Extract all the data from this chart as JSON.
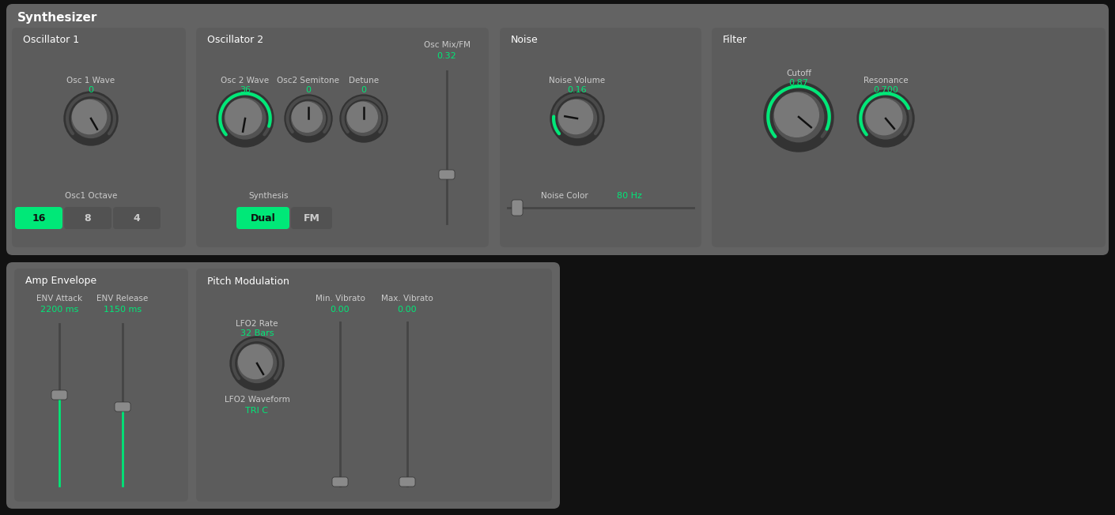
{
  "title": "Synthesizer",
  "green": "#00e878",
  "panel_bg": "#636363",
  "section_bg": "#5c5c5c",
  "knob_outer": "#333333",
  "knob_inner": "#787878",
  "text_light": "#cccccc",
  "text_green": "#00e878",
  "btn_green": "#00e878",
  "btn_dark": "#525252",
  "slider_track": "#454545",
  "slider_handle": "#8a8a8a",
  "black_bg": "#111111",
  "osc1_wave_label": "Osc 1 Wave",
  "osc1_wave_val": "0",
  "osc1_octave_label": "Osc1 Octave",
  "osc1_octave_btns": [
    "16",
    "8",
    "4"
  ],
  "osc2_wave_label": "Osc 2 Wave",
  "osc2_wave_val": "36",
  "osc2_semitone_label": "Osc2 Semitone",
  "osc2_semitone_val": "0",
  "osc2_detune_label": "Detune",
  "osc2_detune_val": "0",
  "osc2_mix_label": "Osc Mix/FM",
  "osc2_mix_val": "0.32",
  "synthesis_label": "Synthesis",
  "synthesis_btns": [
    "Dual",
    "FM"
  ],
  "noise_vol_label": "Noise Volume",
  "noise_vol_val": "0.16",
  "noise_color_label": "Noise Color",
  "noise_color_val": "80 Hz",
  "filter_cutoff_label": "Cutoff",
  "filter_cutoff_val": "0.87",
  "filter_res_label": "Resonance",
  "filter_res_val": "0.700",
  "amp_env_label": "Amp Envelope",
  "env_attack_label": "ENV Attack",
  "env_attack_val": "2200 ms",
  "env_release_label": "ENV Release",
  "env_release_val": "1150 ms",
  "pitch_mod_label": "Pitch Modulation",
  "lfo2_rate_label": "LFO2 Rate",
  "lfo2_rate_val": "32 Bars",
  "min_vib_label": "Min. Vibrato",
  "min_vib_val": "0.00",
  "max_vib_label": "Max. Vibrato",
  "max_vib_val": "0.00",
  "lfo2_waveform_label": "LFO2 Waveform",
  "lfo2_waveform_val": "TRI C"
}
